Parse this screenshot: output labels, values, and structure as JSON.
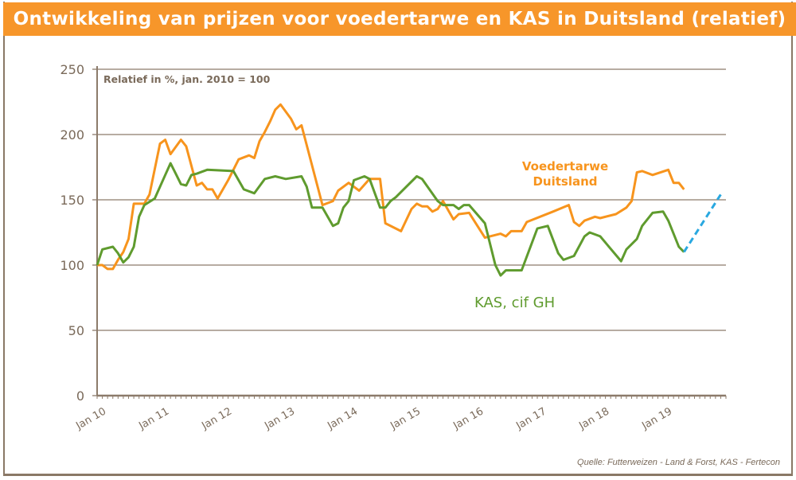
{
  "title": "Ontwikkeling van prijzen voor voedertarwe en KAS in Duitsland (relatief)",
  "source": "Quelle: Futterweizen - Land & Forst, KAS - Fertecon",
  "chart_data": {
    "type": "line",
    "subtitle": "Relatief in %, jan. 2010 = 100",
    "xlabel": "",
    "ylabel": "",
    "xlim": [
      "2010-01",
      "2020-01"
    ],
    "ylim": [
      0,
      250
    ],
    "yticks": [
      0,
      50,
      100,
      150,
      200,
      250
    ],
    "xtick_labels": [
      "Jan 10",
      "Jan 11",
      "Jan 12",
      "Jan 13",
      "Jan 14",
      "Jan 15",
      "Jan 16",
      "Jan 17",
      "Jan 18",
      "Jan 19"
    ],
    "grid": "horizontal",
    "colors": {
      "voedertarwe": "#f7941d",
      "kas": "#5f9b2e",
      "forecast": "#29a8e0",
      "grid": "#8c7b6b"
    },
    "series": [
      {
        "name": "Voedertarwe Duitsland",
        "label_lines": [
          "Voedertarwe",
          "Duitsland"
        ],
        "color": "#f7941d",
        "points": [
          [
            "2010-01",
            100
          ],
          [
            "2010-02",
            100
          ],
          [
            "2010-03",
            97
          ],
          [
            "2010-04",
            97
          ],
          [
            "2010-05",
            104
          ],
          [
            "2010-06",
            110
          ],
          [
            "2010-07",
            120
          ],
          [
            "2010-08",
            147
          ],
          [
            "2010-10",
            147
          ],
          [
            "2010-11",
            154
          ],
          [
            "2011-01",
            193
          ],
          [
            "2011-02",
            196
          ],
          [
            "2011-03",
            185
          ],
          [
            "2011-05",
            196
          ],
          [
            "2011-06",
            191
          ],
          [
            "2011-08",
            161
          ],
          [
            "2011-09",
            163
          ],
          [
            "2011-10",
            158
          ],
          [
            "2011-11",
            158
          ],
          [
            "2011-12",
            151
          ],
          [
            "2012-02",
            165
          ],
          [
            "2012-04",
            181
          ],
          [
            "2012-06",
            184
          ],
          [
            "2012-07",
            182
          ],
          [
            "2012-08",
            195
          ],
          [
            "2012-09",
            202
          ],
          [
            "2012-10",
            210
          ],
          [
            "2012-11",
            219
          ],
          [
            "2012-12",
            223
          ],
          [
            "2013-02",
            212
          ],
          [
            "2013-03",
            204
          ],
          [
            "2013-04",
            207
          ],
          [
            "2013-08",
            146
          ],
          [
            "2013-10",
            149
          ],
          [
            "2013-11",
            157
          ],
          [
            "2014-01",
            163
          ],
          [
            "2014-03",
            157
          ],
          [
            "2014-05",
            166
          ],
          [
            "2014-07",
            166
          ],
          [
            "2014-08",
            132
          ],
          [
            "2014-11",
            126
          ],
          [
            "2015-01",
            143
          ],
          [
            "2015-02",
            147
          ],
          [
            "2015-03",
            145
          ],
          [
            "2015-04",
            145
          ],
          [
            "2015-05",
            141
          ],
          [
            "2015-06",
            143
          ],
          [
            "2015-07",
            149
          ],
          [
            "2015-09",
            135
          ],
          [
            "2015-10",
            139
          ],
          [
            "2015-12",
            140
          ],
          [
            "2016-03",
            121
          ],
          [
            "2016-06",
            124
          ],
          [
            "2016-07",
            122
          ],
          [
            "2016-08",
            126
          ],
          [
            "2016-10",
            126
          ],
          [
            "2016-11",
            133
          ],
          [
            "2017-04",
            141
          ],
          [
            "2017-07",
            146
          ],
          [
            "2017-08",
            133
          ],
          [
            "2017-09",
            130
          ],
          [
            "2017-10",
            134
          ],
          [
            "2017-12",
            137
          ],
          [
            "2018-01",
            136
          ],
          [
            "2018-04",
            139
          ],
          [
            "2018-06",
            144
          ],
          [
            "2018-07",
            149
          ],
          [
            "2018-08",
            171
          ],
          [
            "2018-09",
            172
          ],
          [
            "2018-11",
            169
          ],
          [
            "2019-02",
            173
          ],
          [
            "2019-03",
            163
          ],
          [
            "2019-04",
            163
          ],
          [
            "2019-05",
            158
          ]
        ]
      },
      {
        "name": "KAS, cif GH",
        "label_lines": [
          "KAS, cif GH"
        ],
        "color": "#5f9b2e",
        "points": [
          [
            "2010-01",
            100
          ],
          [
            "2010-02",
            112
          ],
          [
            "2010-04",
            114
          ],
          [
            "2010-05",
            109
          ],
          [
            "2010-06",
            102
          ],
          [
            "2010-07",
            106
          ],
          [
            "2010-08",
            114
          ],
          [
            "2010-09",
            137
          ],
          [
            "2010-10",
            146
          ],
          [
            "2010-12",
            151
          ],
          [
            "2011-02",
            169
          ],
          [
            "2011-03",
            178
          ],
          [
            "2011-04",
            170
          ],
          [
            "2011-05",
            162
          ],
          [
            "2011-06",
            161
          ],
          [
            "2011-07",
            169
          ],
          [
            "2011-08",
            170
          ],
          [
            "2011-10",
            173
          ],
          [
            "2012-03",
            172
          ],
          [
            "2012-05",
            158
          ],
          [
            "2012-07",
            155
          ],
          [
            "2012-09",
            166
          ],
          [
            "2012-11",
            168
          ],
          [
            "2013-01",
            166
          ],
          [
            "2013-04",
            168
          ],
          [
            "2013-05",
            160
          ],
          [
            "2013-06",
            144
          ],
          [
            "2013-08",
            144
          ],
          [
            "2013-10",
            130
          ],
          [
            "2013-11",
            132
          ],
          [
            "2013-12",
            144
          ],
          [
            "2014-01",
            149
          ],
          [
            "2014-02",
            165
          ],
          [
            "2014-04",
            168
          ],
          [
            "2014-05",
            166
          ],
          [
            "2014-07",
            144
          ],
          [
            "2014-08",
            144
          ],
          [
            "2014-09",
            149
          ],
          [
            "2014-10",
            152
          ],
          [
            "2015-02",
            168
          ],
          [
            "2015-03",
            166
          ],
          [
            "2015-06",
            149
          ],
          [
            "2015-07",
            146
          ],
          [
            "2015-09",
            146
          ],
          [
            "2015-10",
            143
          ],
          [
            "2015-11",
            146
          ],
          [
            "2015-12",
            146
          ],
          [
            "2016-03",
            132
          ],
          [
            "2016-05",
            100
          ],
          [
            "2016-06",
            92
          ],
          [
            "2016-07",
            96
          ],
          [
            "2016-10",
            96
          ],
          [
            "2017-01",
            128
          ],
          [
            "2017-03",
            130
          ],
          [
            "2017-05",
            109
          ],
          [
            "2017-06",
            104
          ],
          [
            "2017-08",
            107
          ],
          [
            "2017-10",
            122
          ],
          [
            "2017-11",
            125
          ],
          [
            "2018-01",
            122
          ],
          [
            "2018-05",
            103
          ],
          [
            "2018-06",
            112
          ],
          [
            "2018-08",
            120
          ],
          [
            "2018-09",
            130
          ],
          [
            "2018-11",
            140
          ],
          [
            "2019-01",
            141
          ],
          [
            "2019-02",
            134
          ],
          [
            "2019-04",
            114
          ],
          [
            "2019-05",
            110
          ]
        ]
      },
      {
        "style": "dashed",
        "color": "#29a8e0",
        "points": [
          [
            "2019-05",
            110
          ],
          [
            "2019-12",
            154
          ]
        ]
      }
    ]
  }
}
